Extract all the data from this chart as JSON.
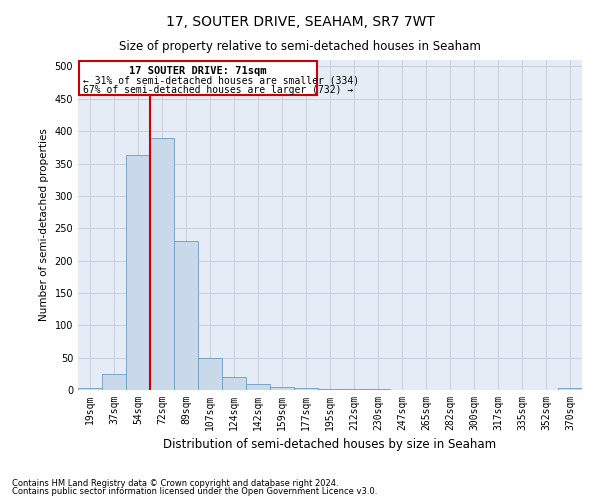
{
  "title": "17, SOUTER DRIVE, SEAHAM, SR7 7WT",
  "subtitle": "Size of property relative to semi-detached houses in Seaham",
  "xlabel": "Distribution of semi-detached houses by size in Seaham",
  "ylabel": "Number of semi-detached properties",
  "footnote1": "Contains HM Land Registry data © Crown copyright and database right 2024.",
  "footnote2": "Contains public sector information licensed under the Open Government Licence v3.0.",
  "bar_color": "#c9d9ea",
  "bar_edge_color": "#6a9cbf",
  "grid_color": "#c5cfe0",
  "background_color": "#e6ecf5",
  "annotation_box_color": "#cc0000",
  "property_line_color": "#cc0000",
  "annotation_title": "17 SOUTER DRIVE: 71sqm",
  "annotation_line1": "← 31% of semi-detached houses are smaller (334)",
  "annotation_line2": "67% of semi-detached houses are larger (732) →",
  "categories": [
    "19sqm",
    "37sqm",
    "54sqm",
    "72sqm",
    "89sqm",
    "107sqm",
    "124sqm",
    "142sqm",
    "159sqm",
    "177sqm",
    "195sqm",
    "212sqm",
    "230sqm",
    "247sqm",
    "265sqm",
    "282sqm",
    "300sqm",
    "317sqm",
    "335sqm",
    "352sqm",
    "370sqm"
  ],
  "values": [
    3,
    25,
    363,
    390,
    230,
    50,
    20,
    9,
    5,
    3,
    2,
    1,
    1,
    0,
    0,
    0,
    0,
    0,
    0,
    0,
    3
  ],
  "ylim": [
    0,
    510
  ],
  "yticks": [
    0,
    50,
    100,
    150,
    200,
    250,
    300,
    350,
    400,
    450,
    500
  ],
  "property_bar_index": 3,
  "title_fontsize": 10,
  "subtitle_fontsize": 8.5,
  "ylabel_fontsize": 7.5,
  "xlabel_fontsize": 8.5,
  "tick_fontsize": 7,
  "annotation_title_fontsize": 7.5,
  "annotation_text_fontsize": 7,
  "footnote_fontsize": 6
}
